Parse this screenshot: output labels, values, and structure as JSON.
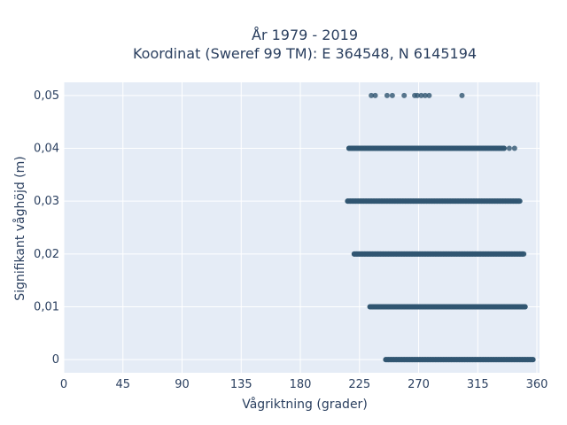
{
  "chart_data": {
    "type": "scatter",
    "title": "År 1979 - 2019",
    "subtitle": "Koordinat (Sweref 99 TM): E 364548, N 6145194",
    "xlabel": "Vågriktning (grader)",
    "ylabel": "Signifikant våghöjd (m)",
    "xlim": [
      0,
      362
    ],
    "ylim": [
      -0.0025,
      0.0525
    ],
    "x_ticks": [
      0,
      45,
      90,
      135,
      180,
      225,
      270,
      315,
      360
    ],
    "x_tick_labels": [
      "0",
      "45",
      "90",
      "135",
      "180",
      "225",
      "270",
      "315",
      "360"
    ],
    "y_ticks": [
      0,
      0.01,
      0.02,
      0.03,
      0.04,
      0.05
    ],
    "y_tick_labels": [
      "0",
      "0,01",
      "0,02",
      "0,03",
      "0,04",
      "0,05"
    ],
    "grid": true,
    "background": "#e5ecf6",
    "marker_color": "#2f5570",
    "marker_opacity": 0.8,
    "bands": [
      {
        "y": 0,
        "x_start": 245,
        "x_end": 357
      },
      {
        "y": 0.01,
        "x_start": 233,
        "x_end": 351
      },
      {
        "y": 0.02,
        "x_start": 221,
        "x_end": 350
      },
      {
        "y": 0.03,
        "x_start": 216,
        "x_end": 347
      },
      {
        "y": 0.04,
        "x_start": 217,
        "x_end": 335
      }
    ],
    "points": [
      {
        "x": 339,
        "y": 0.04
      },
      {
        "x": 343,
        "y": 0.04
      },
      {
        "x": 234,
        "y": 0.05
      },
      {
        "x": 237,
        "y": 0.05
      },
      {
        "x": 246,
        "y": 0.05
      },
      {
        "x": 250,
        "y": 0.05
      },
      {
        "x": 259,
        "y": 0.05
      },
      {
        "x": 267,
        "y": 0.05
      },
      {
        "x": 269,
        "y": 0.05
      },
      {
        "x": 272,
        "y": 0.05
      },
      {
        "x": 275,
        "y": 0.05
      },
      {
        "x": 278,
        "y": 0.05
      },
      {
        "x": 303,
        "y": 0.05
      }
    ]
  }
}
